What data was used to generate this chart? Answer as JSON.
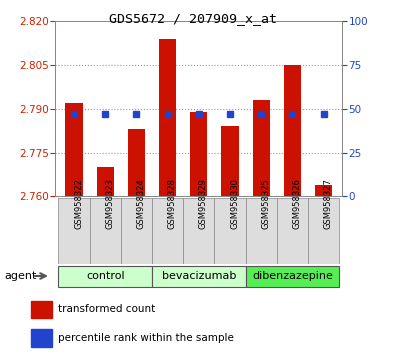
{
  "title": "GDS5672 / 207909_x_at",
  "samples": [
    "GSM958322",
    "GSM958323",
    "GSM958324",
    "GSM958328",
    "GSM958329",
    "GSM958330",
    "GSM958325",
    "GSM958326",
    "GSM958327"
  ],
  "transformed_counts": [
    2.792,
    2.77,
    2.783,
    2.814,
    2.789,
    2.784,
    2.793,
    2.805,
    2.764
  ],
  "percentile_pcts": [
    47,
    47,
    47,
    47,
    47,
    47,
    47,
    47,
    47
  ],
  "groups": [
    {
      "label": "control",
      "indices": [
        0,
        1,
        2
      ],
      "color": "#ccffcc"
    },
    {
      "label": "bevacizumab",
      "indices": [
        3,
        4,
        5
      ],
      "color": "#ccffcc"
    },
    {
      "label": "dibenzazepine",
      "indices": [
        6,
        7,
        8
      ],
      "color": "#55ee55"
    }
  ],
  "bar_color": "#cc1100",
  "percentile_color": "#2244cc",
  "ymin": 2.76,
  "ymax": 2.82,
  "yticks": [
    2.76,
    2.775,
    2.79,
    2.805,
    2.82
  ],
  "right_yticks": [
    0,
    25,
    50,
    75,
    100
  ],
  "bar_width": 0.55,
  "background_color": "#ffffff",
  "grid_color": "#999999",
  "plot_bg": "#ffffff"
}
